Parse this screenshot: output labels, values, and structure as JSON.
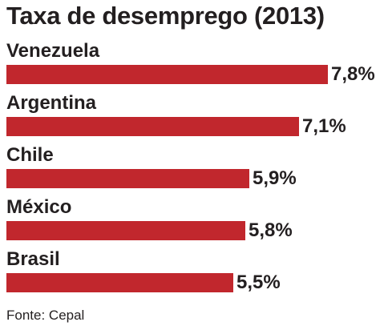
{
  "chart_data": {
    "type": "bar",
    "orientation": "horizontal",
    "title": "Taxa de desemprego (2013)",
    "categories": [
      "Venezuela",
      "Argentina",
      "Chile",
      "México",
      "Brasil"
    ],
    "values": [
      7.8,
      7.1,
      5.9,
      5.8,
      5.5
    ],
    "value_labels": [
      "7,8%",
      "7,1%",
      "5,9%",
      "5,8%",
      "5,5%"
    ],
    "unit": "%",
    "bar_color": "#c1272d",
    "grid": false,
    "legend": "none",
    "source": "Fonte: Cepal"
  }
}
